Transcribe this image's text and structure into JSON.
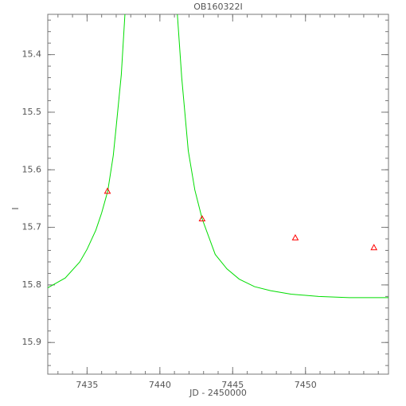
{
  "chart_data": {
    "type": "scatter",
    "title": "OB160322I",
    "x_label": "JD - 2450000",
    "y_label": "I",
    "xlim": [
      7432.3,
      7455.7
    ],
    "xticks": [
      7435,
      7440,
      7445,
      7450
    ],
    "ylim": [
      15.955,
      15.33
    ],
    "yticks": [
      15.4,
      15.5,
      15.6,
      15.7,
      15.8,
      15.9
    ],
    "series": [
      {
        "type": "line",
        "color": "#00dd00",
        "x": [
          7432.3,
          7433.5,
          7434.5,
          7435.0,
          7435.6,
          7436.0,
          7436.42,
          7436.8,
          7437.0,
          7437.35,
          7437.6,
          null,
          7441.2,
          7441.5,
          7441.95,
          7442.4,
          7442.9,
          7443.8,
          7444.6,
          7445.45,
          7446.5,
          7447.6,
          7449.0,
          7450.9,
          7453.0,
          7455.7
        ],
        "values": [
          15.805,
          15.788,
          15.76,
          15.738,
          15.705,
          15.675,
          15.637,
          15.575,
          15.525,
          15.435,
          15.33,
          null,
          15.33,
          15.44,
          15.567,
          15.635,
          15.685,
          15.747,
          15.772,
          15.79,
          15.803,
          15.81,
          15.816,
          15.82,
          15.822,
          15.822
        ]
      },
      {
        "type": "scatter",
        "color": "#ff0000",
        "x": [
          7436.4,
          7442.9,
          7449.3,
          7454.7
        ],
        "values": [
          15.637,
          15.685,
          15.718,
          15.735
        ]
      }
    ]
  }
}
